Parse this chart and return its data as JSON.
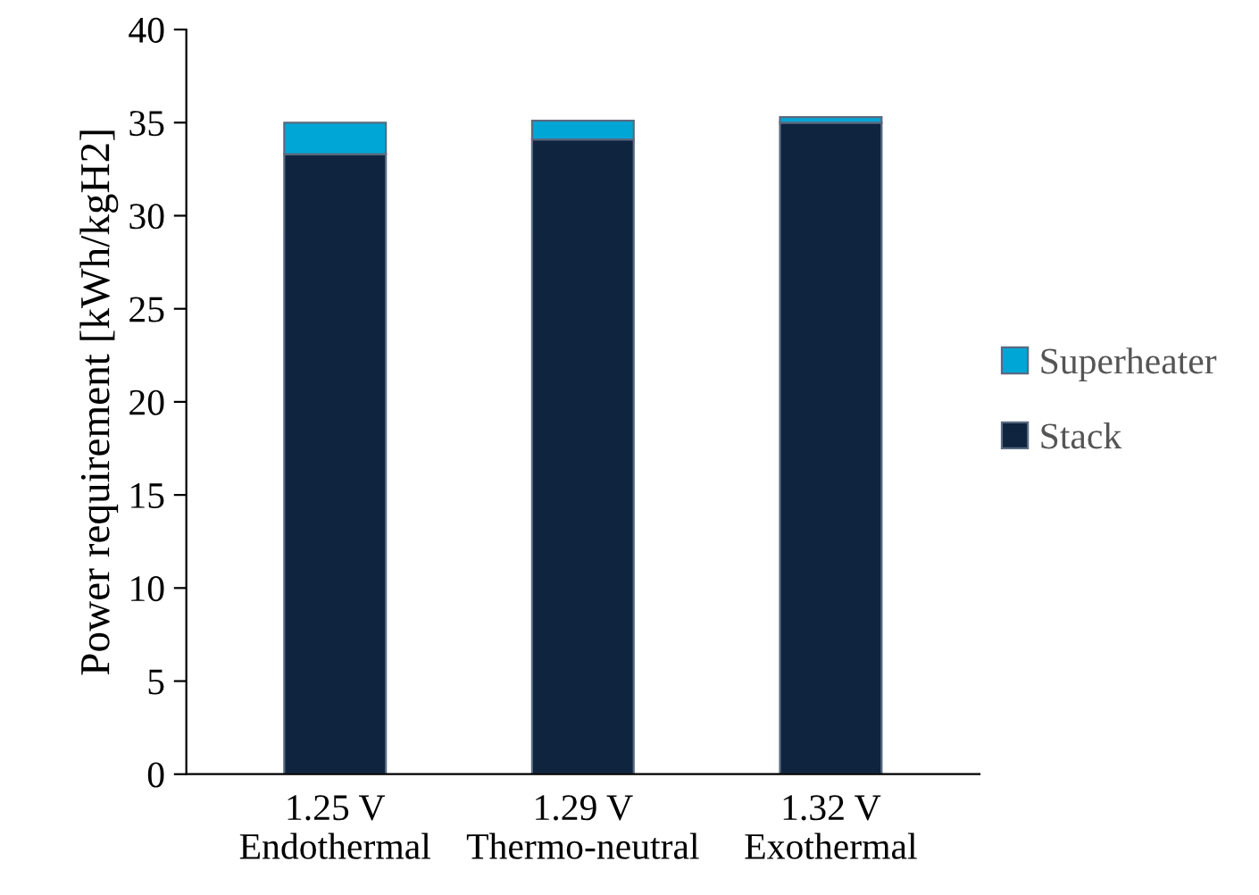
{
  "chart_data": {
    "type": "bar",
    "stacked": true,
    "categories": [
      "1.25 V\nEndothermal",
      "1.29 V\nThermo-neutral",
      "1.32 V\nExothermal"
    ],
    "series": [
      {
        "name": "Stack",
        "color": "#0f243f",
        "values": [
          33.3,
          34.1,
          35.0
        ]
      },
      {
        "name": "Superheater",
        "color": "#00a6d6",
        "values": [
          1.7,
          1.0,
          0.3
        ]
      }
    ],
    "ylabel": "Power requirement [kWh/kgH2]",
    "ylim": [
      0,
      40
    ],
    "yticks": [
      0,
      5,
      10,
      15,
      20,
      25,
      30,
      35,
      40
    ],
    "grid": false,
    "legend": "right"
  }
}
